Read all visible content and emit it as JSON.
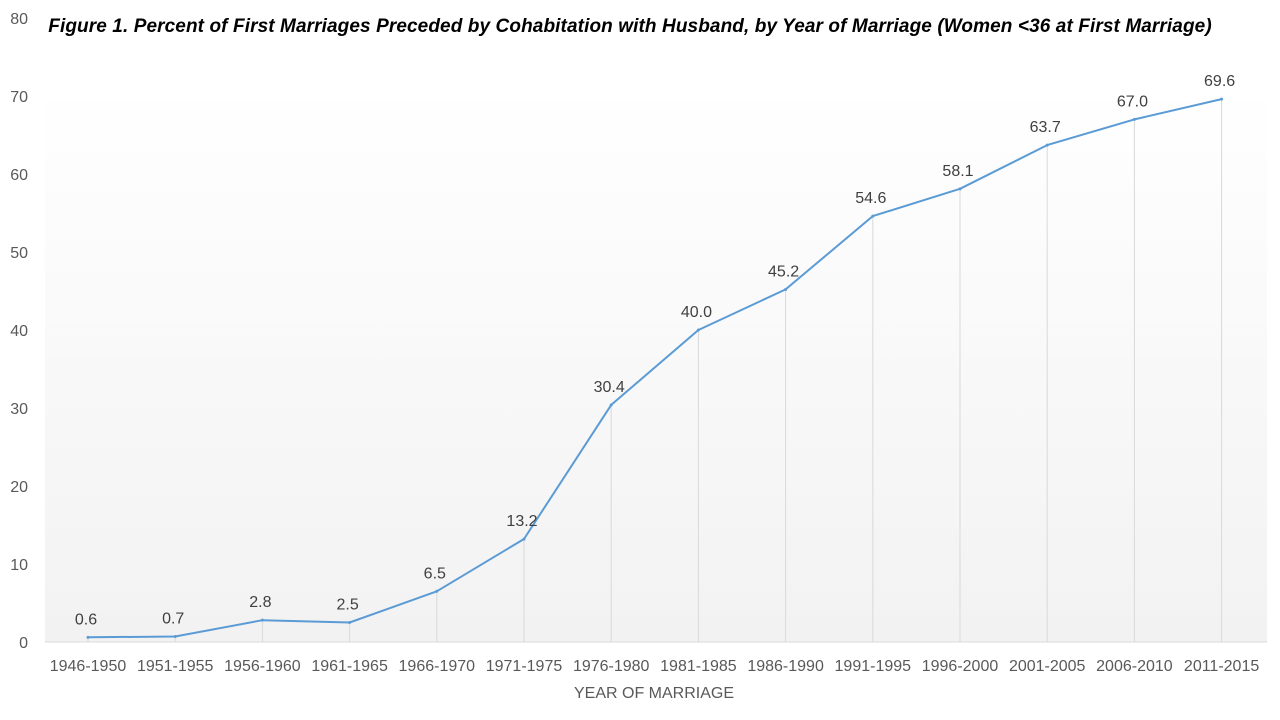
{
  "chart_data": {
    "type": "line",
    "title": "Figure 1. Percent of First Marriages Preceded by Cohabitation with Husband, by Year of Marriage (Women <36 at First Marriage)",
    "xlabel": "YEAR OF MARRIAGE",
    "ylabel": "",
    "categories": [
      "1946-1950",
      "1951-1955",
      "1956-1960",
      "1961-1965",
      "1966-1970",
      "1971-1975",
      "1976-1980",
      "1981-1985",
      "1986-1990",
      "1991-1995",
      "1996-2000",
      "2001-2005",
      "2006-2010",
      "2011-2015"
    ],
    "values": [
      0.6,
      0.7,
      2.8,
      2.5,
      6.5,
      13.2,
      30.4,
      40.0,
      45.2,
      54.6,
      58.1,
      63.7,
      67.0,
      69.6
    ],
    "value_labels": [
      "0.6",
      "0.7",
      "2.8",
      "2.5",
      "6.5",
      "13.2",
      "30.4",
      "40.0",
      "45.2",
      "54.6",
      "58.1",
      "63.7",
      "67.0",
      "69.6"
    ],
    "ylim": [
      0,
      80
    ],
    "yticks": [
      "0",
      "10",
      "20",
      "30",
      "40",
      "50",
      "60",
      "70",
      "80"
    ],
    "grid": "vertical drop lines",
    "legend": "none",
    "line_color": "#5B9BD5",
    "gridline_color": "#D9D9D9",
    "background_gradient": [
      "#FFFFFF",
      "#F2F2F2"
    ]
  }
}
